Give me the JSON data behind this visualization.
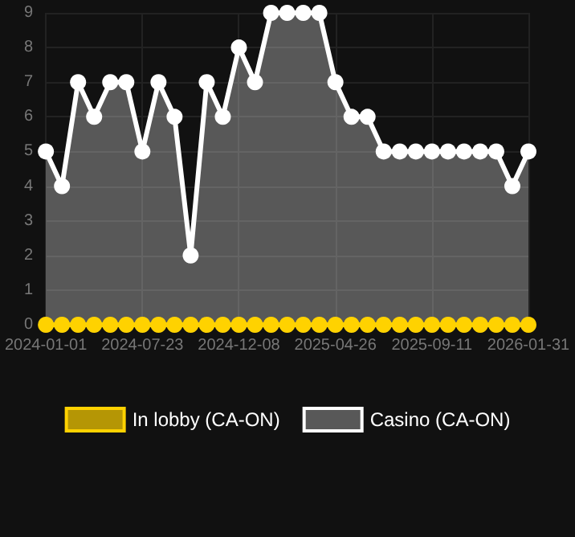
{
  "chart_data": {
    "type": "area",
    "categories": [
      "2024-01-01",
      null,
      null,
      null,
      null,
      null,
      "2024-07-23",
      null,
      null,
      null,
      null,
      null,
      "2024-12-08",
      null,
      null,
      null,
      null,
      null,
      "2025-04-26",
      null,
      null,
      null,
      null,
      null,
      "2025-09-11",
      null,
      null,
      null,
      null,
      null,
      "2026-01-31"
    ],
    "series": [
      {
        "name": "In lobby (CA-ON)",
        "type": "line",
        "color": "#ffd200",
        "values": [
          0,
          0,
          0,
          0,
          0,
          0,
          0,
          0,
          0,
          0,
          0,
          0,
          0,
          0,
          0,
          0,
          0,
          0,
          0,
          0,
          0,
          0,
          0,
          0,
          0,
          0,
          0,
          0,
          0,
          0,
          0
        ]
      },
      {
        "name": "Casino (CA-ON)",
        "color": "#ffffff",
        "values": [
          5,
          4,
          7,
          6,
          7,
          7,
          5,
          7,
          6,
          2,
          7,
          6,
          8,
          7,
          9,
          9,
          9,
          9,
          7,
          6,
          6,
          5,
          5,
          5,
          5,
          5,
          5,
          5,
          5,
          4,
          5
        ]
      }
    ],
    "ylim": [
      0,
      9
    ],
    "yticks": [
      0,
      1,
      2,
      3,
      4,
      5,
      6,
      7,
      8,
      9
    ],
    "grid": true,
    "legend": "bottom",
    "marker": "circle",
    "line_style": "solid"
  }
}
